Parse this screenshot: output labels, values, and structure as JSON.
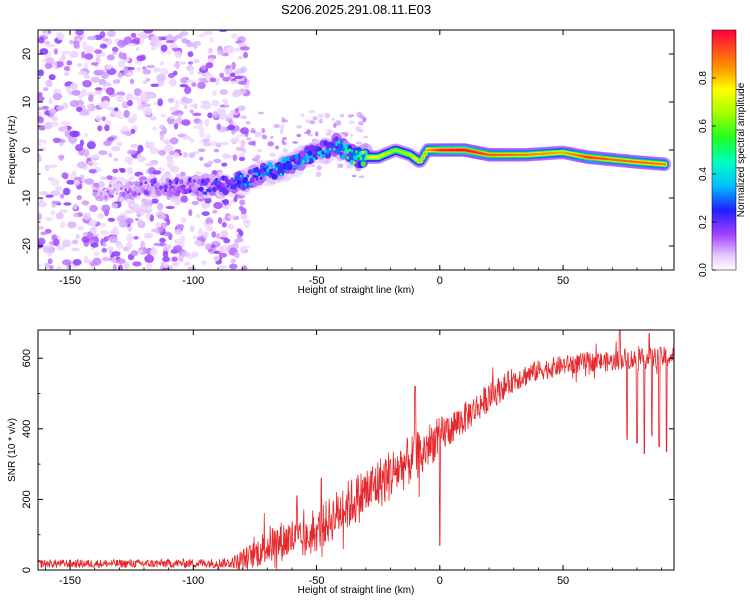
{
  "title": "S206.2025.291.08.11.E03",
  "chart_data": [
    {
      "type": "heatmap",
      "name": "spectrogram",
      "xlabel": "Height of straight line (km)",
      "ylabel": "Frequency (Hz)",
      "xlim": [
        -163,
        95
      ],
      "ylim": [
        -25,
        25
      ],
      "xticks": [
        -150,
        -100,
        -50,
        0,
        50
      ],
      "yticks": [
        -20,
        -10,
        0,
        10,
        20
      ],
      "colorbar": {
        "label": "Normalized spectral amplitude",
        "range": [
          0,
          1
        ],
        "ticks": [
          0.0,
          0.2,
          0.4,
          0.6,
          0.8
        ]
      },
      "track": {
        "x": [
          -130,
          -115,
          -100,
          -90,
          -80,
          -70,
          -60,
          -50,
          -42,
          -35,
          -25,
          -18,
          -12,
          -8,
          -5,
          0,
          10,
          20,
          35,
          50,
          60,
          70,
          80,
          92
        ],
        "freq": [
          -8.5,
          -7.5,
          -7.5,
          -7.5,
          -6.5,
          -4.5,
          -3,
          -0.5,
          1,
          -1.5,
          -1.5,
          0,
          -1,
          -2.5,
          0,
          0,
          0,
          -1,
          -1,
          -0.5,
          -1.5,
          -2,
          -2.5,
          -3
        ],
        "amplitude": [
          0.15,
          0.2,
          0.25,
          0.3,
          0.4,
          0.45,
          0.45,
          0.45,
          0.4,
          0.7,
          0.75,
          0.65,
          0.7,
          0.8,
          0.85,
          0.97,
          1.0,
          0.92,
          0.88,
          0.82,
          0.95,
          0.9,
          0.9,
          0.88
        ]
      }
    },
    {
      "type": "line",
      "name": "snr",
      "xlabel": "Height of straight line (km)",
      "ylabel": "SNR (10 * v/v)",
      "xlim": [
        -163,
        95
      ],
      "ylim": [
        0,
        680
      ],
      "xticks": [
        -150,
        -100,
        -50,
        0,
        50
      ],
      "yticks": [
        0,
        200,
        400,
        600
      ],
      "color": "#e8272b",
      "envelope": {
        "x": [
          -163,
          -120,
          -85,
          -80,
          -75,
          -70,
          -60,
          -55,
          -50,
          -40,
          -30,
          -20,
          -10,
          -5,
          0,
          10,
          20,
          30,
          40,
          50,
          60,
          70,
          75,
          80,
          85,
          95
        ],
        "mean": [
          18,
          18,
          20,
          30,
          45,
          70,
          90,
          80,
          110,
          170,
          220,
          270,
          320,
          350,
          380,
          430,
          490,
          540,
          565,
          580,
          590,
          590,
          600,
          595,
          600,
          605
        ],
        "spread": [
          12,
          12,
          14,
          30,
          40,
          55,
          60,
          50,
          60,
          70,
          75,
          75,
          70,
          65,
          55,
          45,
          40,
          35,
          30,
          28,
          28,
          28,
          30,
          30,
          30,
          30
        ]
      },
      "dips": [
        {
          "x": 0,
          "y": 70
        },
        {
          "x": -7,
          "y": 280
        },
        {
          "x": 76,
          "y": 370
        },
        {
          "x": 80,
          "y": 360
        },
        {
          "x": 83,
          "y": 330
        },
        {
          "x": 86,
          "y": 380
        },
        {
          "x": 89,
          "y": 350
        },
        {
          "x": 92,
          "y": 335
        }
      ],
      "spikes": [
        {
          "x": -10,
          "y": 520
        },
        {
          "x": -58,
          "y": 210
        },
        {
          "x": -48,
          "y": 260
        },
        {
          "x": 73,
          "y": 680
        },
        {
          "x": 85,
          "y": 670
        }
      ]
    }
  ]
}
